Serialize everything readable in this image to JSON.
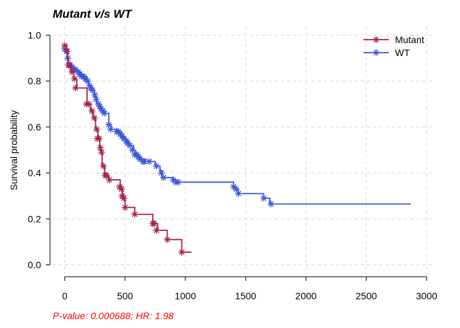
{
  "chart_data": {
    "type": "line",
    "title": "Mutant v/s WT",
    "xlabel": "",
    "ylabel": "Survival probability",
    "xlim": [
      -100,
      3050
    ],
    "ylim": [
      -0.04,
      1.04
    ],
    "xticks": [
      0,
      500,
      1000,
      1500,
      2000,
      2500,
      3000
    ],
    "yticks": [
      0.0,
      0.2,
      0.4,
      0.6,
      0.8,
      1.0
    ],
    "xtick_labels": [
      "0",
      "500",
      "1000",
      "1500",
      "2000",
      "2500",
      "3000"
    ],
    "ytick_labels": [
      "0.0",
      "0.2",
      "0.4",
      "0.6",
      "0.8",
      "1.0"
    ],
    "grid": true,
    "legend_position": "top-right",
    "annotation": "P-value: 0.000688; HR: 1.98",
    "series": [
      {
        "name": "Mutant",
        "color": "#a3214f",
        "steps": [
          [
            0,
            0.955
          ],
          [
            15,
            0.93
          ],
          [
            25,
            0.87
          ],
          [
            50,
            0.84
          ],
          [
            75,
            0.81
          ],
          [
            100,
            0.77
          ],
          [
            160,
            0.77
          ],
          [
            185,
            0.7
          ],
          [
            215,
            0.67
          ],
          [
            235,
            0.64
          ],
          [
            255,
            0.59
          ],
          [
            275,
            0.55
          ],
          [
            290,
            0.51
          ],
          [
            300,
            0.49
          ],
          [
            310,
            0.43
          ],
          [
            330,
            0.39
          ],
          [
            365,
            0.37
          ],
          [
            460,
            0.33
          ],
          [
            480,
            0.29
          ],
          [
            500,
            0.25
          ],
          [
            580,
            0.22
          ],
          [
            730,
            0.18
          ],
          [
            770,
            0.15
          ],
          [
            850,
            0.11
          ],
          [
            960,
            0.11
          ],
          [
            970,
            0.055
          ],
          [
            1050,
            0.055
          ]
        ],
        "censored": [
          [
            0,
            0.955
          ],
          [
            20,
            0.93
          ],
          [
            30,
            0.87
          ],
          [
            45,
            0.87
          ],
          [
            60,
            0.84
          ],
          [
            80,
            0.81
          ],
          [
            90,
            0.77
          ],
          [
            180,
            0.7
          ],
          [
            200,
            0.7
          ],
          [
            225,
            0.67
          ],
          [
            245,
            0.64
          ],
          [
            265,
            0.59
          ],
          [
            270,
            0.55
          ],
          [
            285,
            0.55
          ],
          [
            295,
            0.51
          ],
          [
            305,
            0.49
          ],
          [
            320,
            0.43
          ],
          [
            335,
            0.39
          ],
          [
            345,
            0.39
          ],
          [
            370,
            0.37
          ],
          [
            455,
            0.34
          ],
          [
            470,
            0.33
          ],
          [
            475,
            0.3
          ],
          [
            490,
            0.29
          ],
          [
            500,
            0.25
          ],
          [
            580,
            0.22
          ],
          [
            730,
            0.18
          ],
          [
            740,
            0.18
          ],
          [
            760,
            0.15
          ],
          [
            850,
            0.11
          ],
          [
            970,
            0.055
          ]
        ]
      },
      {
        "name": "WT",
        "color": "#3b56d6",
        "steps": [
          [
            0,
            0.94
          ],
          [
            20,
            0.9
          ],
          [
            30,
            0.86
          ],
          [
            80,
            0.85
          ],
          [
            100,
            0.84
          ],
          [
            130,
            0.83
          ],
          [
            150,
            0.82
          ],
          [
            180,
            0.8
          ],
          [
            200,
            0.78
          ],
          [
            220,
            0.76
          ],
          [
            245,
            0.73
          ],
          [
            265,
            0.7
          ],
          [
            290,
            0.68
          ],
          [
            310,
            0.67
          ],
          [
            330,
            0.66
          ],
          [
            365,
            0.61
          ],
          [
            385,
            0.59
          ],
          [
            440,
            0.58
          ],
          [
            460,
            0.57
          ],
          [
            470,
            0.56
          ],
          [
            490,
            0.55
          ],
          [
            510,
            0.54
          ],
          [
            530,
            0.52
          ],
          [
            570,
            0.5
          ],
          [
            585,
            0.48
          ],
          [
            610,
            0.47
          ],
          [
            630,
            0.46
          ],
          [
            660,
            0.45
          ],
          [
            700,
            0.45
          ],
          [
            750,
            0.43
          ],
          [
            790,
            0.41
          ],
          [
            805,
            0.38
          ],
          [
            900,
            0.37
          ],
          [
            925,
            0.36
          ],
          [
            1400,
            0.34
          ],
          [
            1420,
            0.33
          ],
          [
            1440,
            0.31
          ],
          [
            1650,
            0.29
          ],
          [
            1700,
            0.265
          ],
          [
            2870,
            0.265
          ]
        ],
        "censored": [
          [
            0,
            0.94
          ],
          [
            15,
            0.93
          ],
          [
            25,
            0.9
          ],
          [
            35,
            0.87
          ],
          [
            60,
            0.86
          ],
          [
            75,
            0.85
          ],
          [
            90,
            0.85
          ],
          [
            110,
            0.84
          ],
          [
            125,
            0.83
          ],
          [
            140,
            0.82
          ],
          [
            160,
            0.82
          ],
          [
            170,
            0.81
          ],
          [
            190,
            0.8
          ],
          [
            205,
            0.78
          ],
          [
            215,
            0.77
          ],
          [
            230,
            0.76
          ],
          [
            250,
            0.74
          ],
          [
            260,
            0.72
          ],
          [
            280,
            0.7
          ],
          [
            290,
            0.69
          ],
          [
            300,
            0.68
          ],
          [
            315,
            0.67
          ],
          [
            330,
            0.66
          ],
          [
            365,
            0.61
          ],
          [
            380,
            0.59
          ],
          [
            430,
            0.58
          ],
          [
            445,
            0.58
          ],
          [
            460,
            0.57
          ],
          [
            475,
            0.56
          ],
          [
            490,
            0.55
          ],
          [
            510,
            0.54
          ],
          [
            520,
            0.53
          ],
          [
            540,
            0.52
          ],
          [
            560,
            0.5
          ],
          [
            580,
            0.48
          ],
          [
            595,
            0.48
          ],
          [
            610,
            0.47
          ],
          [
            625,
            0.46
          ],
          [
            650,
            0.45
          ],
          [
            660,
            0.45
          ],
          [
            700,
            0.45
          ],
          [
            760,
            0.43
          ],
          [
            800,
            0.4
          ],
          [
            820,
            0.38
          ],
          [
            900,
            0.37
          ],
          [
            920,
            0.36
          ],
          [
            940,
            0.36
          ],
          [
            1400,
            0.34
          ],
          [
            1420,
            0.33
          ],
          [
            1440,
            0.31
          ],
          [
            1650,
            0.29
          ],
          [
            1710,
            0.265
          ]
        ]
      }
    ]
  }
}
